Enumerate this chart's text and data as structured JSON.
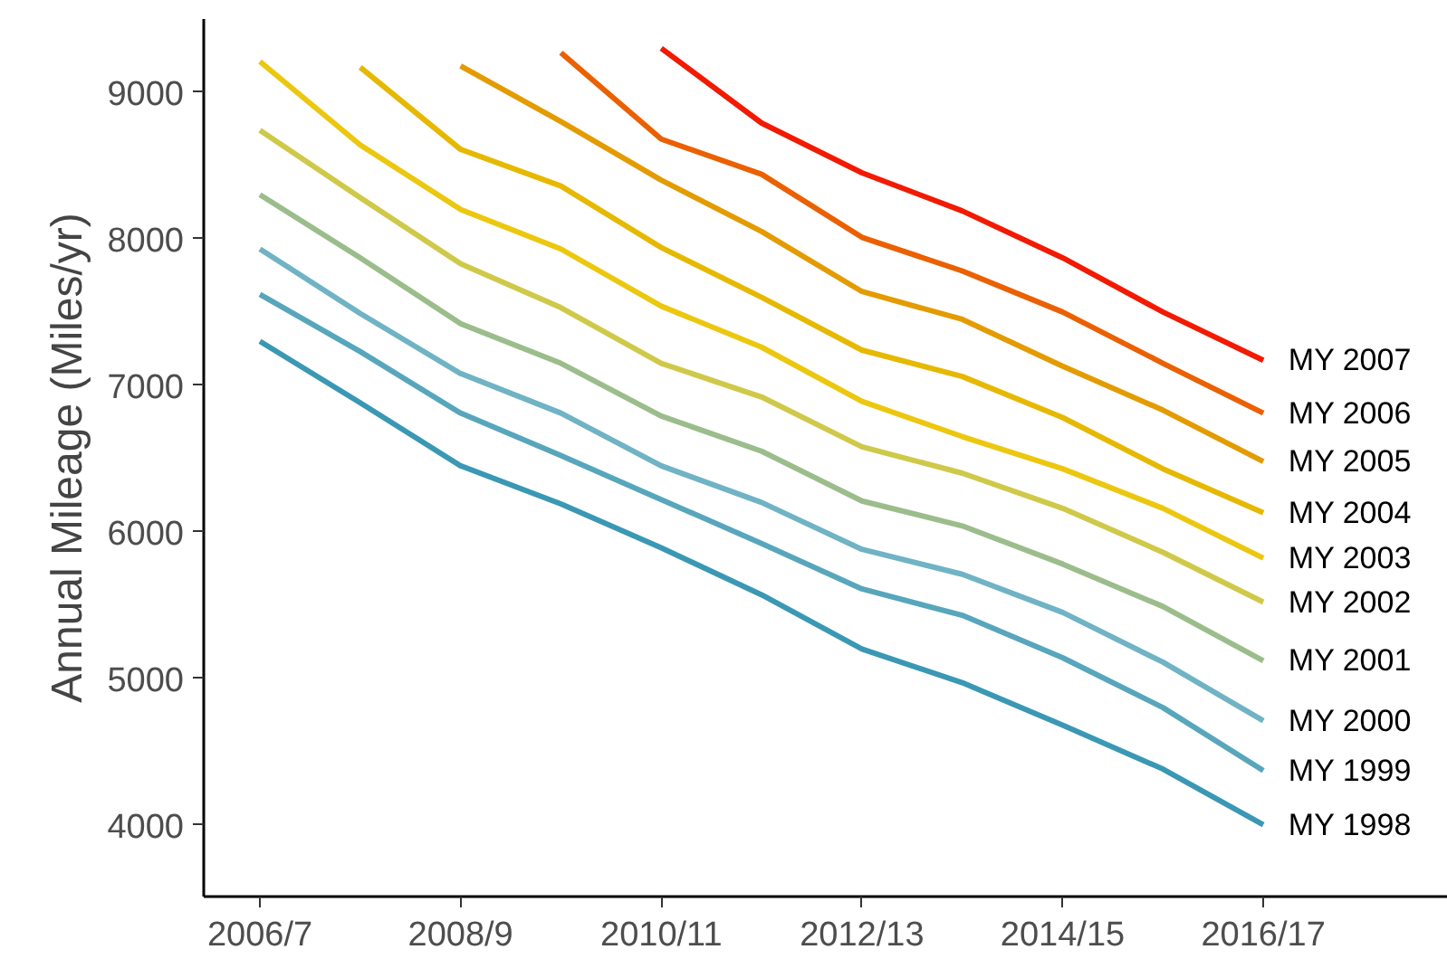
{
  "chart_data": {
    "type": "line",
    "ylabel": "Annual Mileage (Miles/yr)",
    "categories": [
      "2006/7",
      null,
      "2008/9",
      null,
      "2010/11",
      null,
      "2012/13",
      null,
      "2014/15",
      null,
      "2016/17"
    ],
    "ylim": [
      3510,
      9500
    ],
    "yticks": [
      4000,
      5000,
      6000,
      7000,
      8000,
      9000
    ],
    "grid": false,
    "marker": "none",
    "line_style": "solid",
    "series": [
      {
        "name": "MY 1998",
        "color": "#3a98b4",
        "values": [
          7300,
          6880,
          6450,
          6190,
          5890,
          5570,
          5200,
          4970,
          4680,
          4380,
          4000
        ]
      },
      {
        "name": "MY 1999",
        "color": "#57a6bc",
        "values": [
          7620,
          7230,
          6810,
          6520,
          6220,
          5920,
          5610,
          5430,
          5140,
          4800,
          4370
        ]
      },
      {
        "name": "MY 2000",
        "color": "#6fb3c4",
        "values": [
          7930,
          7490,
          7080,
          6810,
          6450,
          6200,
          5880,
          5710,
          5450,
          5110,
          4710
        ]
      },
      {
        "name": "MY 2001",
        "color": "#9bbd8c",
        "values": [
          8300,
          7870,
          7420,
          7150,
          6790,
          6550,
          6210,
          6040,
          5780,
          5490,
          5120
        ]
      },
      {
        "name": "MY 2002",
        "color": "#cfc94a",
        "values": [
          8740,
          8280,
          7830,
          7530,
          7150,
          6920,
          6580,
          6400,
          6160,
          5860,
          5520
        ]
      },
      {
        "name": "MY 2003",
        "color": "#ecc70f",
        "values": [
          9210,
          8640,
          8200,
          7930,
          7540,
          7260,
          6890,
          6650,
          6430,
          6160,
          5820
        ]
      },
      {
        "name": "MY 2004",
        "color": "#e6b800",
        "values": [
          null,
          9170,
          8610,
          8360,
          7940,
          7600,
          7240,
          7060,
          6780,
          6430,
          6130
        ]
      },
      {
        "name": "MY 2005",
        "color": "#e39b00",
        "values": [
          null,
          null,
          9180,
          8800,
          8400,
          8050,
          7640,
          7450,
          7130,
          6830,
          6480
        ]
      },
      {
        "name": "MY 2006",
        "color": "#eb6000",
        "values": [
          null,
          null,
          null,
          9270,
          8680,
          8440,
          8010,
          7780,
          7500,
          7150,
          6810
        ]
      },
      {
        "name": "MY 2007",
        "color": "#f21a00",
        "values": [
          null,
          null,
          null,
          null,
          9300,
          8790,
          8450,
          8190,
          7870,
          7500,
          7170
        ]
      }
    ]
  }
}
